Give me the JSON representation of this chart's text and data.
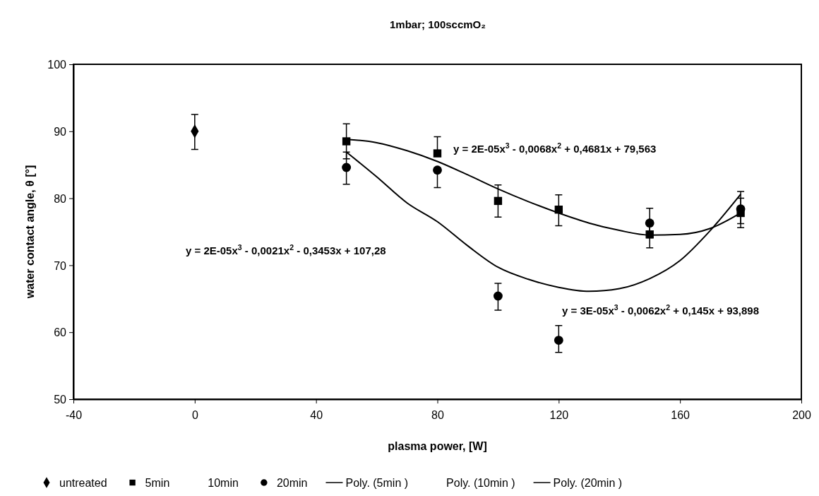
{
  "chart_data": {
    "type": "scatter",
    "title": "1mbar; 100sccmO₂",
    "xlabel": "plasma power, [W]",
    "ylabel": "water contact angle, θ [°]",
    "xlim": [
      -40,
      200
    ],
    "xticks": [
      -40,
      0,
      40,
      80,
      120,
      160,
      200
    ],
    "ylim": [
      50,
      100
    ],
    "yticks": [
      50,
      60,
      70,
      80,
      90,
      100
    ],
    "grid": false,
    "legend": "bottom",
    "series": [
      {
        "name": "untreated",
        "marker": "diamond",
        "color": "#000000",
        "x": [
          0
        ],
        "values": [
          90
        ],
        "errors": [
          [
            87.3,
            92.5
          ]
        ]
      },
      {
        "name": "5min",
        "marker": "square",
        "color": "#000000",
        "x": [
          50,
          80,
          100,
          120,
          150,
          180
        ],
        "values": [
          88.5,
          86.7,
          79.6,
          78.3,
          74.6,
          77.8
        ],
        "errors": [
          [
            85.9,
            91.1
          ],
          [
            86.7,
            89.2
          ],
          [
            77.2,
            82.0
          ],
          [
            75.9,
            80.5
          ],
          [
            72.6,
            76.6
          ],
          [
            75.6,
            80.0
          ]
        ]
      },
      {
        "name": "10min",
        "marker": "none"
      },
      {
        "name": "20min",
        "marker": "circle",
        "color": "#000000",
        "x": [
          50,
          80,
          100,
          120,
          150,
          180
        ],
        "values": [
          84.6,
          84.2,
          65.4,
          58.8,
          76.3,
          78.4
        ],
        "errors": [
          [
            82.1,
            86.9
          ],
          [
            81.6,
            84.2
          ],
          [
            63.3,
            67.3
          ],
          [
            57.0,
            61.0
          ],
          [
            74.1,
            78.5
          ],
          [
            76.2,
            81.0
          ]
        ]
      },
      {
        "name": "Poly. (5min  )",
        "type": "line",
        "marker": "none",
        "line_style": "solid",
        "color": "#000000",
        "x": [
          50,
          60,
          70,
          80,
          90,
          100,
          110,
          120,
          130,
          140,
          150,
          160,
          170,
          180
        ],
        "values": [
          88.8,
          88.3,
          87.1,
          85.5,
          83.5,
          81.4,
          79.5,
          77.8,
          76.3,
          75.2,
          74.5,
          74.6,
          75.5,
          77.8
        ]
      },
      {
        "name": "Poly. (10min  )",
        "type": "line",
        "line_style": "none"
      },
      {
        "name": "Poly. (20min  )",
        "type": "line",
        "marker": "none",
        "line_style": "solid",
        "color": "#000000",
        "x": [
          50,
          60,
          70,
          80,
          90,
          100,
          110,
          120,
          130,
          140,
          150,
          160,
          170,
          180
        ],
        "values": [
          86.9,
          83.2,
          79.3,
          76.5,
          72.9,
          69.7,
          67.9,
          66.7,
          66.1,
          66.5,
          68.0,
          70.7,
          75.2,
          80.6
        ]
      }
    ],
    "annotations": [
      "y = 2E-05x$^{3}$ - 0,0068x$^{2}$ + 0,4681x + 79,563",
      "y = 2E-05x$^{3}$ - 0,0021x$^{2}$ - 0,3453x + 107,28",
      "y = 3E-05x$^{3}$ - 0,0062x$^{2}$ + 0,145x + 93,898"
    ]
  }
}
